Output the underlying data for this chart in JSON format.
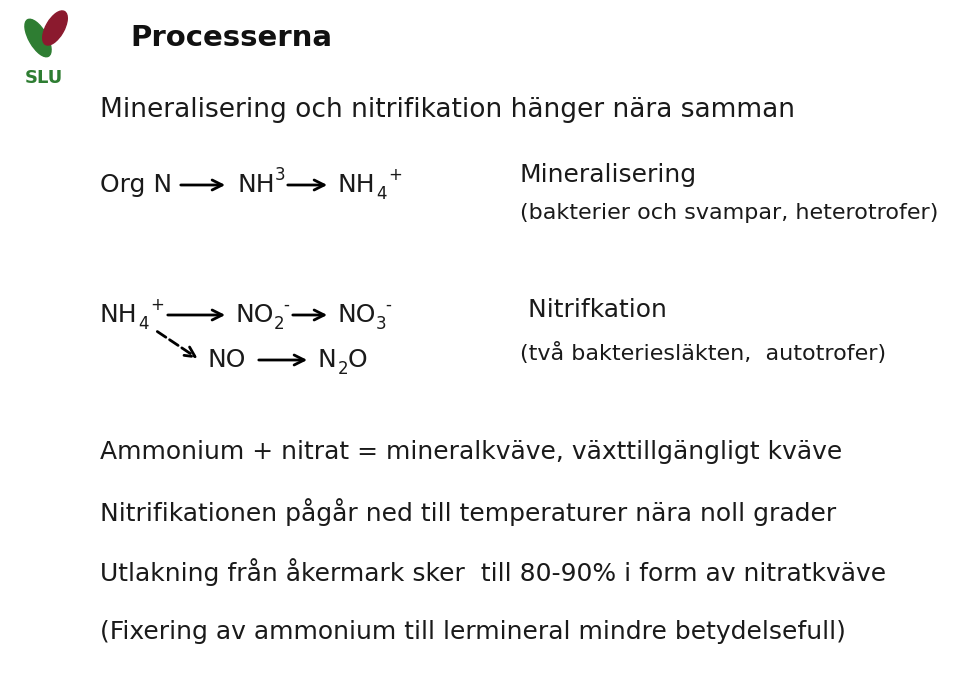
{
  "title": "Processerna",
  "subtitle": "Mineralisering och nitrifikation hänger nära samman",
  "bg_color": "#ffffff",
  "text_color": "#1a1a1a",
  "title_fontsize": 21,
  "subtitle_fontsize": 19,
  "body_fontsize": 18,
  "small_fontsize": 12,
  "slu_green": "#2e7d32",
  "slu_red": "#8b1a2e",
  "line1_label": "Mineralisering",
  "line1_sub": "(bakterier och svampar, heterotrofer)",
  "line2_label": "Nitrifkation",
  "line2_sub": "(två bakteriesläkten,  autotrofer)",
  "bullet1": "Ammonium + nitrat = mineralkväve, växttillgängligt kväve",
  "bullet2": "Nitrifikationen pågår ned till temperaturer nära noll grader",
  "bullet3": "Utlakning från åkermark sker  till 80-90% i form av nitratkväve",
  "bullet4": "(Fixering av ammonium till lermineral mindre betydelsefull)",
  "fig_width": 9.6,
  "fig_height": 6.73,
  "dpi": 100
}
